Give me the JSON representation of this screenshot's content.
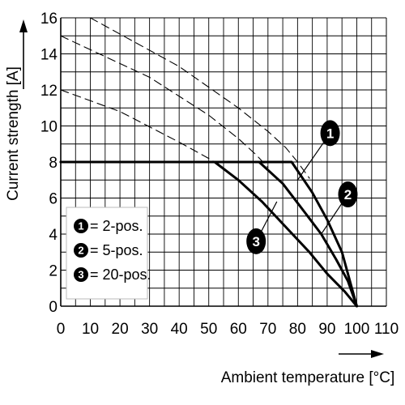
{
  "chart_data": {
    "type": "line",
    "xlabel": "Ambient temperature [°C]",
    "ylabel": "Current strength [A]",
    "xlim": [
      0,
      110
    ],
    "ylim": [
      0,
      16
    ],
    "x_ticks": [
      "0",
      "10",
      "20",
      "30",
      "40",
      "50",
      "60",
      "70",
      "80",
      "90",
      "100",
      "110"
    ],
    "y_ticks": [
      "0",
      "2",
      "4",
      "6",
      "8",
      "10",
      "12",
      "14",
      "16"
    ],
    "grid": true,
    "legend_position": "bottom-left",
    "legend": [
      {
        "marker": "1",
        "label": "= 2-pos."
      },
      {
        "marker": "2",
        "label": "= 5-pos."
      },
      {
        "marker": "3",
        "label": "= 20-pos."
      }
    ],
    "series": [
      {
        "marker": "1",
        "style": "solid",
        "points": [
          [
            0,
            8
          ],
          [
            78,
            8
          ],
          [
            85,
            6.3
          ],
          [
            90,
            4.8
          ],
          [
            95,
            3.0
          ],
          [
            100,
            0
          ]
        ]
      },
      {
        "marker": "2",
        "style": "solid",
        "points": [
          [
            0,
            8
          ],
          [
            67,
            8
          ],
          [
            75,
            6.8
          ],
          [
            82,
            5.3
          ],
          [
            88,
            4.0
          ],
          [
            93,
            2.6
          ],
          [
            97,
            1.4
          ],
          [
            100,
            0
          ]
        ]
      },
      {
        "marker": "3",
        "style": "solid",
        "points": [
          [
            0,
            8
          ],
          [
            52,
            8
          ],
          [
            60,
            7.0
          ],
          [
            68,
            5.8
          ],
          [
            76,
            4.4
          ],
          [
            84,
            3.0
          ],
          [
            90,
            1.8
          ],
          [
            96,
            0.8
          ],
          [
            100,
            0
          ]
        ]
      },
      {
        "marker": "1",
        "style": "dashed",
        "points": [
          [
            10,
            16
          ],
          [
            40,
            13.3
          ],
          [
            60,
            11.0
          ],
          [
            70,
            9.7
          ],
          [
            76,
            8.8
          ],
          [
            80,
            8.0
          ],
          [
            84,
            7.1
          ]
        ]
      },
      {
        "marker": "2",
        "style": "dashed",
        "points": [
          [
            0,
            15
          ],
          [
            30,
            12.7
          ],
          [
            50,
            10.6
          ],
          [
            60,
            9.3
          ],
          [
            66,
            8.4
          ],
          [
            70,
            7.7
          ]
        ]
      },
      {
        "marker": "3",
        "style": "dashed",
        "points": [
          [
            0,
            12
          ],
          [
            20,
            10.8
          ],
          [
            40,
            9.1
          ],
          [
            50,
            8.2
          ],
          [
            54,
            7.8
          ]
        ]
      }
    ],
    "markers": [
      {
        "label": "1",
        "x": 91,
        "y": 9.6,
        "target": [
          80,
          7.0
        ]
      },
      {
        "label": "2",
        "x": 97,
        "y": 6.2,
        "target": [
          88,
          4.0
        ]
      },
      {
        "label": "3",
        "x": 66,
        "y": 3.6,
        "target": [
          73,
          5.8
        ]
      }
    ]
  }
}
